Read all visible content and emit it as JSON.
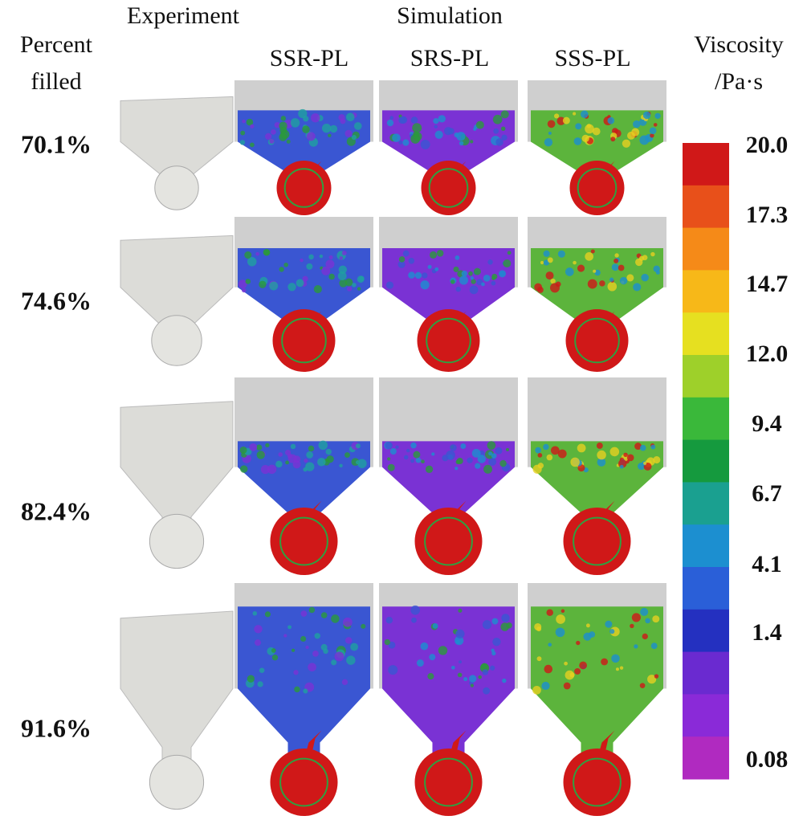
{
  "header": {
    "experiment": "Experiment",
    "simulation": "Simulation",
    "percent_filled": [
      "Percent",
      "filled"
    ]
  },
  "columns": [
    "SSR-PL",
    "SRS-PL",
    "SSS-PL"
  ],
  "rows": [
    "70.1%",
    "74.6%",
    "82.4%",
    "91.6%"
  ],
  "colorbar": {
    "title": [
      "Viscosity",
      "/Pa·s"
    ],
    "labels": [
      "20.0",
      "17.3",
      "14.7",
      "12.0",
      "9.4",
      "6.7",
      "4.1",
      "1.4",
      "0.08"
    ]
  }
}
